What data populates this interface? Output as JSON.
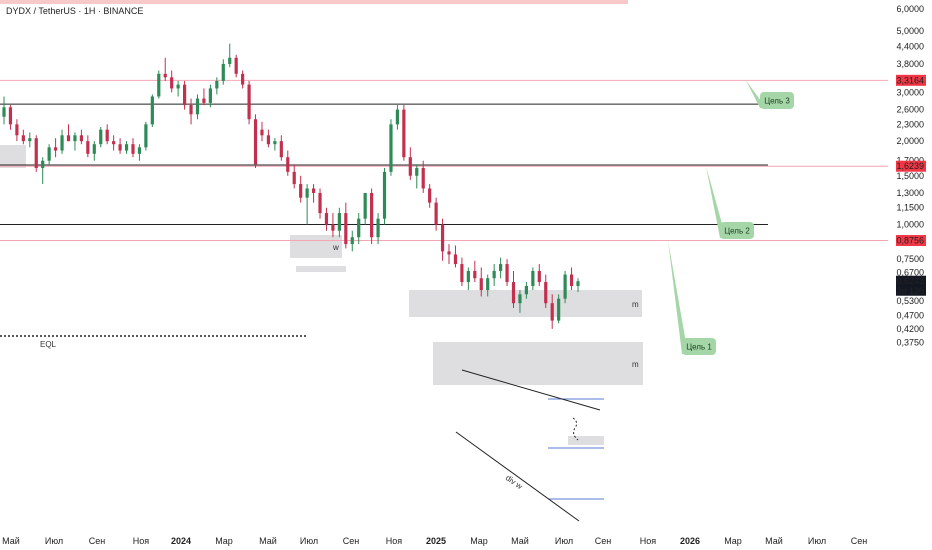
{
  "chart_data": {
    "type": "candlestick",
    "title": "DYDX / TetherUS · 1H · BINANCE",
    "price_scale": "log",
    "ylim": [
      0.35,
      6.2
    ],
    "x_ticks": [
      "Май",
      "Июл",
      "Сен",
      "Ноя",
      "2024",
      "Мар",
      "Май",
      "Июл",
      "Сен",
      "Ноя",
      "2025",
      "Мар",
      "Май",
      "Июл",
      "Сен",
      "Ноя",
      "2026",
      "Мар",
      "Май",
      "Июл",
      "Сен"
    ],
    "y_ticks": [
      "6,0000",
      "5,0000",
      "4,4000",
      "3,8000",
      "3,3000",
      "3,0000",
      "2,6000",
      "2,3000",
      "2,0000",
      "1,7000",
      "1,5000",
      "1,3000",
      "1,1500",
      "1,0000",
      "0,7500",
      "0,6700",
      "0,5300",
      "0,4700",
      "0,4200",
      "0,3750"
    ],
    "y_tick_values": [
      6.0,
      5.0,
      4.4,
      3.8,
      3.3,
      3.0,
      2.6,
      2.3,
      2.0,
      1.7,
      1.5,
      1.3,
      1.15,
      1.0,
      0.75,
      0.67,
      0.53,
      0.47,
      0.42,
      0.375
    ],
    "price_labels": [
      {
        "text": "3,3164",
        "value": 3.3164,
        "color": "#f23645"
      },
      {
        "text": "1,6239",
        "value": 1.6239,
        "color": "#f23645"
      },
      {
        "text": "0,8756",
        "value": 0.8756,
        "color": "#f23645"
      },
      {
        "text": "0,6243",
        "value": 0.6243,
        "color": "#131722"
      }
    ],
    "current_price_countdown": "2d 12h",
    "targets": [
      {
        "label": "Цель 3",
        "value": 3.3164
      },
      {
        "label": "Цель 2",
        "value": 1.6239
      },
      {
        "label": "Цель 1",
        "value": 0.8756
      }
    ],
    "horizontal_levels": [
      2.72,
      1.64,
      1.0
    ],
    "annotations": [
      "EQL",
      "w",
      "m",
      "m",
      "div w"
    ],
    "candles": [
      [
        2.45,
        2.9,
        2.3,
        2.65
      ],
      [
        2.65,
        2.7,
        2.2,
        2.3
      ],
      [
        2.3,
        2.4,
        2.0,
        2.1
      ],
      [
        2.1,
        2.2,
        1.95,
        2.0
      ],
      [
        2.0,
        2.15,
        1.9,
        2.05
      ],
      [
        2.05,
        2.1,
        1.55,
        1.6
      ],
      [
        1.6,
        1.75,
        1.4,
        1.7
      ],
      [
        1.7,
        1.95,
        1.65,
        1.9
      ],
      [
        1.9,
        2.05,
        1.75,
        1.85
      ],
      [
        1.85,
        2.2,
        1.8,
        2.1
      ],
      [
        2.1,
        2.3,
        2.0,
        2.0
      ],
      [
        2.0,
        2.15,
        1.85,
        2.1
      ],
      [
        2.1,
        2.2,
        1.95,
        2.0
      ],
      [
        2.0,
        2.1,
        1.75,
        1.8
      ],
      [
        1.8,
        2.0,
        1.7,
        1.95
      ],
      [
        1.95,
        2.25,
        1.9,
        2.2
      ],
      [
        2.2,
        2.3,
        1.95,
        2.0
      ],
      [
        2.0,
        2.1,
        1.85,
        1.95
      ],
      [
        1.95,
        2.05,
        1.8,
        1.85
      ],
      [
        1.85,
        2.0,
        1.8,
        1.95
      ],
      [
        1.95,
        2.05,
        1.75,
        1.8
      ],
      [
        1.8,
        1.95,
        1.7,
        1.9
      ],
      [
        1.9,
        2.35,
        1.85,
        2.3
      ],
      [
        2.3,
        2.95,
        2.25,
        2.9
      ],
      [
        2.9,
        3.6,
        2.85,
        3.5
      ],
      [
        3.5,
        4.0,
        3.3,
        3.4
      ],
      [
        3.4,
        3.6,
        3.0,
        3.1
      ],
      [
        3.1,
        3.3,
        2.9,
        3.2
      ],
      [
        3.2,
        3.3,
        2.6,
        2.7
      ],
      [
        2.7,
        2.85,
        2.3,
        2.5
      ],
      [
        2.5,
        2.95,
        2.4,
        2.85
      ],
      [
        2.85,
        3.1,
        2.7,
        2.75
      ],
      [
        2.75,
        3.2,
        2.65,
        3.1
      ],
      [
        3.1,
        3.4,
        2.95,
        3.3
      ],
      [
        3.3,
        3.95,
        3.2,
        3.8
      ],
      [
        3.8,
        4.5,
        3.7,
        4.0
      ],
      [
        4.0,
        4.1,
        3.4,
        3.5
      ],
      [
        3.5,
        3.6,
        3.1,
        3.2
      ],
      [
        3.2,
        3.3,
        2.3,
        2.4
      ],
      [
        2.4,
        2.5,
        1.6,
        1.65
      ],
      [
        2.2,
        2.35,
        2.0,
        2.1
      ],
      [
        2.1,
        2.2,
        1.9,
        1.95
      ],
      [
        1.95,
        2.05,
        1.85,
        2.0
      ],
      [
        2.0,
        2.1,
        1.7,
        1.75
      ],
      [
        1.75,
        1.85,
        1.5,
        1.55
      ],
      [
        1.55,
        1.65,
        1.35,
        1.4
      ],
      [
        1.4,
        1.5,
        1.2,
        1.25
      ],
      [
        1.25,
        1.4,
        1.0,
        1.35
      ],
      [
        1.35,
        1.4,
        1.2,
        1.3
      ],
      [
        1.3,
        1.35,
        1.05,
        1.1
      ],
      [
        1.1,
        1.15,
        0.95,
        1.0
      ],
      [
        1.0,
        1.1,
        0.9,
        0.95
      ],
      [
        0.95,
        1.15,
        0.9,
        1.1
      ],
      [
        1.1,
        1.2,
        0.82,
        0.85
      ],
      [
        0.85,
        0.95,
        0.8,
        0.9
      ],
      [
        0.9,
        1.1,
        0.85,
        1.05
      ],
      [
        1.05,
        1.3,
        1.0,
        1.3
      ],
      [
        1.3,
        1.35,
        0.85,
        0.9
      ],
      [
        0.9,
        1.1,
        0.85,
        1.05
      ],
      [
        1.05,
        1.6,
        1.0,
        1.55
      ],
      [
        1.55,
        2.4,
        1.5,
        2.3
      ],
      [
        2.3,
        2.7,
        2.2,
        2.6
      ],
      [
        2.6,
        2.7,
        1.7,
        1.75
      ],
      [
        1.75,
        1.9,
        1.45,
        1.5
      ],
      [
        1.5,
        1.65,
        1.35,
        1.6
      ],
      [
        1.6,
        1.7,
        1.3,
        1.35
      ],
      [
        1.35,
        1.4,
        1.15,
        1.2
      ],
      [
        1.2,
        1.25,
        0.95,
        1.0
      ],
      [
        1.0,
        1.05,
        0.74,
        0.8
      ],
      [
        0.8,
        0.85,
        0.72,
        0.78
      ],
      [
        0.78,
        0.84,
        0.7,
        0.72
      ],
      [
        0.72,
        0.76,
        0.6,
        0.62
      ],
      [
        0.62,
        0.7,
        0.58,
        0.68
      ],
      [
        0.68,
        0.74,
        0.62,
        0.64
      ],
      [
        0.64,
        0.7,
        0.55,
        0.58
      ],
      [
        0.58,
        0.66,
        0.55,
        0.64
      ],
      [
        0.64,
        0.72,
        0.6,
        0.68
      ],
      [
        0.68,
        0.76,
        0.64,
        0.72
      ],
      [
        0.72,
        0.75,
        0.6,
        0.62
      ],
      [
        0.62,
        0.68,
        0.5,
        0.52
      ],
      [
        0.52,
        0.58,
        0.48,
        0.56
      ],
      [
        0.56,
        0.62,
        0.54,
        0.6
      ],
      [
        0.6,
        0.7,
        0.58,
        0.68
      ],
      [
        0.68,
        0.72,
        0.6,
        0.62
      ],
      [
        0.62,
        0.66,
        0.5,
        0.52
      ],
      [
        0.52,
        0.56,
        0.42,
        0.45
      ],
      [
        0.45,
        0.56,
        0.44,
        0.54
      ],
      [
        0.54,
        0.68,
        0.52,
        0.66
      ],
      [
        0.66,
        0.7,
        0.58,
        0.6
      ],
      [
        0.6,
        0.64,
        0.57,
        0.6243
      ]
    ]
  }
}
